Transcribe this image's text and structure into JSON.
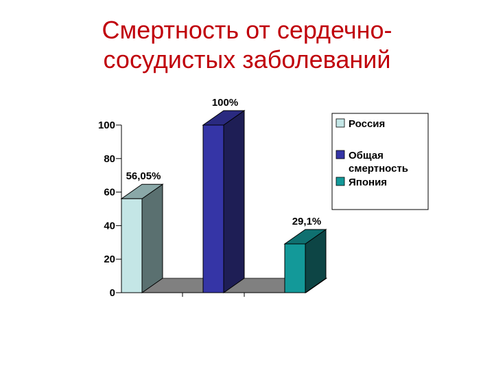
{
  "slide": {
    "title_line1": "Смертность от сердечно-",
    "title_line2": "сосудистых заболеваний",
    "title_color": "#c0000a"
  },
  "chart_data": {
    "type": "bar",
    "style": "3d",
    "categories": [
      "Россия",
      "Общая смертность",
      "Япония"
    ],
    "values": [
      56.05,
      100,
      29.1
    ],
    "data_labels": [
      "56,05%",
      "100%",
      "29,1%"
    ],
    "colors": {
      "front": [
        "#c4e6e6",
        "#3535a6",
        "#139999"
      ],
      "side": [
        "#5a7070",
        "#1e1e55",
        "#0d4545"
      ],
      "top": [
        "#8aa8a8",
        "#2a2a80",
        "#0f7070"
      ],
      "floor": "#808080"
    },
    "y_ticks": [
      "0",
      "20",
      "40",
      "60",
      "80",
      "100"
    ],
    "ylim": [
      0,
      100
    ],
    "grid": false,
    "legend": {
      "position": "right",
      "entries": [
        {
          "lines": [
            "Россия"
          ],
          "color": "#c4e6e6"
        },
        {
          "lines": [
            "Общая",
            "смертность"
          ],
          "color": "#3535a6"
        },
        {
          "lines": [
            "Япония"
          ],
          "color": "#139999"
        }
      ]
    }
  }
}
